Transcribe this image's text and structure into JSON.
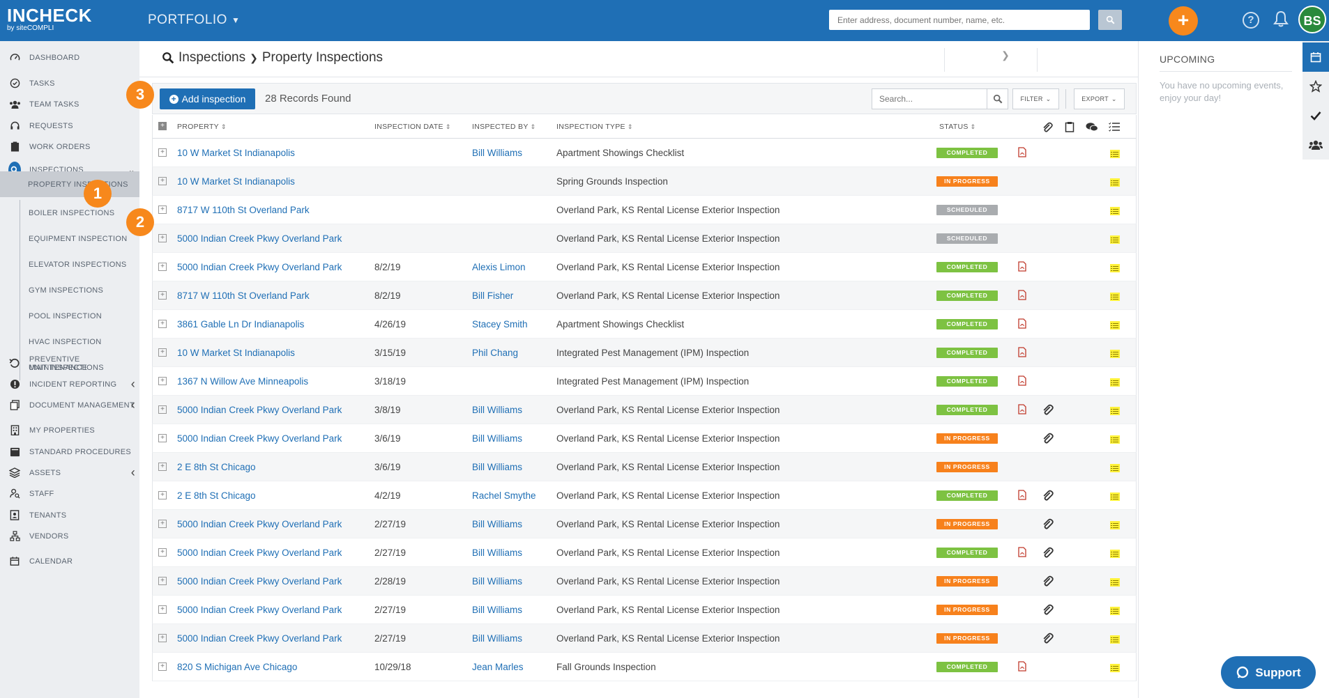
{
  "header": {
    "brand": "INCHECK",
    "brand_sub": "by siteCOMPLI",
    "portfolio_label": "PORTFOLIO",
    "search_placeholder": "Enter address, document number, name, etc.",
    "add_label": "+",
    "avatar_initials": "BS"
  },
  "sidebar": {
    "items": [
      {
        "label": "DASHBOARD",
        "icon": "dashboard-icon"
      },
      {
        "label": "TASKS",
        "icon": "check-circle-icon"
      },
      {
        "label": "TEAM TASKS",
        "icon": "team-icon"
      },
      {
        "label": "REQUESTS",
        "icon": "headset-icon"
      },
      {
        "label": "WORK ORDERS",
        "icon": "clipboard-icon"
      },
      {
        "label": "INSPECTIONS",
        "icon": "search-icon"
      },
      {
        "label": "PREVENTIVE MAINTENANCE",
        "icon": "undo-icon"
      },
      {
        "label": "INCIDENT REPORTING",
        "icon": "alert-icon"
      },
      {
        "label": "DOCUMENT MANAGEMENT",
        "icon": "documents-icon"
      },
      {
        "label": "MY PROPERTIES",
        "icon": "building-icon"
      },
      {
        "label": "STANDARD PROCEDURES",
        "icon": "book-icon"
      },
      {
        "label": "ASSETS",
        "icon": "layers-icon"
      },
      {
        "label": "STAFF",
        "icon": "user-search-icon"
      },
      {
        "label": "TENANTS",
        "icon": "contact-icon"
      },
      {
        "label": "VENDORS",
        "icon": "sitemap-icon"
      },
      {
        "label": "CALENDAR",
        "icon": "calendar-icon"
      }
    ],
    "inspection_subitems": [
      "PROPERTY INSPECTIONS",
      "BOILER INSPECTIONS",
      "EQUIPMENT INSPECTION",
      "ELEVATOR INSPECTIONS",
      "GYM INSPECTIONS",
      "POOL INSPECTION",
      "HVAC INSPECTION",
      "UNIT INSPECTIONS"
    ]
  },
  "callouts": [
    "1",
    "2",
    "3"
  ],
  "breadcrumb": {
    "first": "Inspections",
    "second": "Property Inspections"
  },
  "toolbar": {
    "add_label": "Add inspection",
    "records": "28 Records Found",
    "search_placeholder": "Search...",
    "filter_label": "FILTER",
    "export_label": "EXPORT"
  },
  "table": {
    "columns": [
      "PROPERTY",
      "INSPECTION DATE",
      "INSPECTED BY",
      "INSPECTION TYPE",
      "STATUS"
    ],
    "rows": [
      {
        "property": "10 W Market St Indianapolis",
        "date": "",
        "by": "Bill Williams",
        "type": "Apartment Showings Checklist",
        "status": "COMPLETED",
        "pdf": true,
        "clip": false
      },
      {
        "property": "10 W Market St Indianapolis",
        "date": "",
        "by": "",
        "type": "Spring Grounds Inspection",
        "status": "IN PROGRESS",
        "pdf": false,
        "clip": false
      },
      {
        "property": "8717 W 110th St Overland Park",
        "date": "",
        "by": "",
        "type": "Overland Park, KS Rental License Exterior Inspection",
        "status": "SCHEDULED",
        "pdf": false,
        "clip": false
      },
      {
        "property": "5000 Indian Creek Pkwy Overland Park",
        "date": "",
        "by": "",
        "type": "Overland Park, KS Rental License Exterior Inspection",
        "status": "SCHEDULED",
        "pdf": false,
        "clip": false
      },
      {
        "property": "5000 Indian Creek Pkwy Overland Park",
        "date": "8/2/19",
        "by": "Alexis Limon",
        "type": "Overland Park, KS Rental License Exterior Inspection",
        "status": "COMPLETED",
        "pdf": true,
        "clip": false
      },
      {
        "property": "8717 W 110th St Overland Park",
        "date": "8/2/19",
        "by": "Bill Fisher",
        "type": "Overland Park, KS Rental License Exterior Inspection",
        "status": "COMPLETED",
        "pdf": true,
        "clip": false
      },
      {
        "property": "3861 Gable Ln Dr Indianapolis",
        "date": "4/26/19",
        "by": "Stacey Smith",
        "type": "Apartment Showings Checklist",
        "status": "COMPLETED",
        "pdf": true,
        "clip": false
      },
      {
        "property": "10 W Market St Indianapolis",
        "date": "3/15/19",
        "by": "Phil Chang",
        "type": "Integrated Pest Management (IPM) Inspection",
        "status": "COMPLETED",
        "pdf": true,
        "clip": false
      },
      {
        "property": "1367 N Willow Ave Minneapolis",
        "date": "3/18/19",
        "by": "",
        "type": "Integrated Pest Management (IPM) Inspection",
        "status": "COMPLETED",
        "pdf": true,
        "clip": false
      },
      {
        "property": "5000 Indian Creek Pkwy Overland Park",
        "date": "3/8/19",
        "by": "Bill Williams",
        "type": "Overland Park, KS Rental License Exterior Inspection",
        "status": "COMPLETED",
        "pdf": true,
        "clip": true
      },
      {
        "property": "5000 Indian Creek Pkwy Overland Park",
        "date": "3/6/19",
        "by": "Bill Williams",
        "type": "Overland Park, KS Rental License Exterior Inspection",
        "status": "IN PROGRESS",
        "pdf": false,
        "clip": true
      },
      {
        "property": "2 E 8th St Chicago",
        "date": "3/6/19",
        "by": "Bill Williams",
        "type": "Overland Park, KS Rental License Exterior Inspection",
        "status": "IN PROGRESS",
        "pdf": false,
        "clip": false
      },
      {
        "property": "2 E 8th St Chicago",
        "date": "4/2/19",
        "by": "Rachel Smythe",
        "type": "Overland Park, KS Rental License Exterior Inspection",
        "status": "COMPLETED",
        "pdf": true,
        "clip": true
      },
      {
        "property": "5000 Indian Creek Pkwy Overland Park",
        "date": "2/27/19",
        "by": "Bill Williams",
        "type": "Overland Park, KS Rental License Exterior Inspection",
        "status": "IN PROGRESS",
        "pdf": false,
        "clip": true
      },
      {
        "property": "5000 Indian Creek Pkwy Overland Park",
        "date": "2/27/19",
        "by": "Bill Williams",
        "type": "Overland Park, KS Rental License Exterior Inspection",
        "status": "COMPLETED",
        "pdf": true,
        "clip": true
      },
      {
        "property": "5000 Indian Creek Pkwy Overland Park",
        "date": "2/28/19",
        "by": "Bill Williams",
        "type": "Overland Park, KS Rental License Exterior Inspection",
        "status": "IN PROGRESS",
        "pdf": false,
        "clip": true
      },
      {
        "property": "5000 Indian Creek Pkwy Overland Park",
        "date": "2/27/19",
        "by": "Bill Williams",
        "type": "Overland Park, KS Rental License Exterior Inspection",
        "status": "IN PROGRESS",
        "pdf": false,
        "clip": true
      },
      {
        "property": "5000 Indian Creek Pkwy Overland Park",
        "date": "2/27/19",
        "by": "Bill Williams",
        "type": "Overland Park, KS Rental License Exterior Inspection",
        "status": "IN PROGRESS",
        "pdf": false,
        "clip": true
      },
      {
        "property": "820 S Michigan Ave Chicago",
        "date": "10/29/18",
        "by": "Jean Marles",
        "type": "Fall Grounds Inspection",
        "status": "COMPLETED",
        "pdf": true,
        "clip": false
      }
    ]
  },
  "status_colors": {
    "COMPLETED": "#7dc242",
    "IN PROGRESS": "#f7811c",
    "SCHEDULED": "#a9acaf"
  },
  "upcoming": {
    "title": "UPCOMING",
    "message": "You have no upcoming events, enjoy your day!"
  },
  "support_label": "Support",
  "colors": {
    "primary": "#1f6fb5",
    "accent": "#f7881c"
  }
}
